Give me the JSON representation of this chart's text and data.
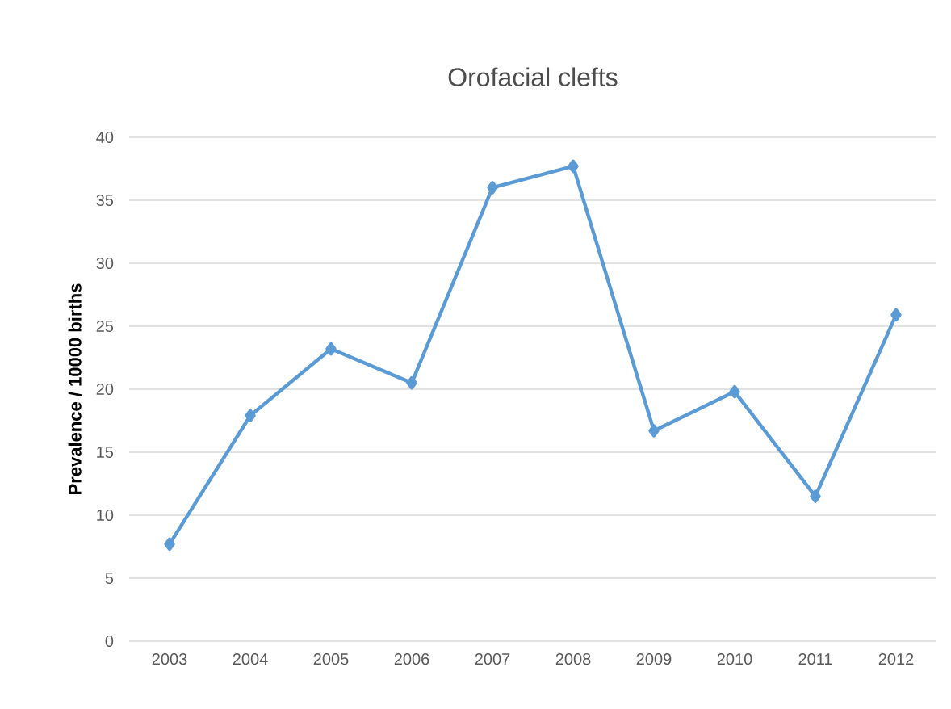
{
  "chart_data": {
    "type": "line",
    "title": "Orofacial clefts",
    "ylabel": "Prevalence / 10000 births",
    "categories": [
      "2003",
      "2004",
      "2005",
      "2006",
      "2007",
      "2008",
      "2009",
      "2010",
      "2011",
      "2012"
    ],
    "values": [
      7.7,
      17.9,
      23.2,
      20.5,
      36.0,
      37.7,
      16.7,
      19.8,
      11.5,
      25.9
    ],
    "color": "#5b9bd5",
    "marker": "diamond",
    "line_style": "solid",
    "ylim": [
      0,
      40
    ],
    "yticks": [
      0,
      5,
      10,
      15,
      20,
      25,
      30,
      35,
      40
    ],
    "grid": "y"
  }
}
